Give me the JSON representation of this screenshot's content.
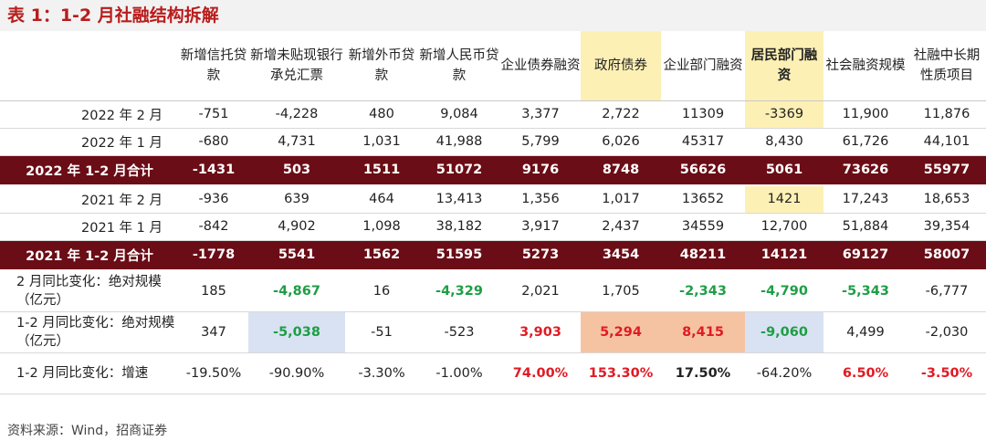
{
  "title": "表 1：1-2 月社融结构拆解",
  "headers": [
    "新增信托贷款",
    "新增未贴现银行承兑汇票",
    "新增外币贷款",
    "新增人民币贷款",
    "企业债券融资",
    "政府债券",
    "企业部门融资",
    "居民部门融资",
    "社会融资规模",
    "社融中长期性质项目"
  ],
  "rows": [
    {
      "label": "2022 年 2 月",
      "values": [
        "-751",
        "-4,228",
        "480",
        "9,084",
        "3,377",
        "2,722",
        "11309",
        "-3369",
        "11,900",
        "11,876"
      ]
    },
    {
      "label": "2022 年 1 月",
      "values": [
        "-680",
        "4,731",
        "1,031",
        "41,988",
        "5,799",
        "6,026",
        "45317",
        "8,430",
        "61,726",
        "44,101"
      ]
    },
    {
      "label": "2022 年 1-2 月合计",
      "values": [
        "-1431",
        "503",
        "1511",
        "51072",
        "9176",
        "8748",
        "56626",
        "5061",
        "73626",
        "55977"
      ]
    },
    {
      "label": "2021 年 2 月",
      "values": [
        "-936",
        "639",
        "464",
        "13,413",
        "1,356",
        "1,017",
        "13652",
        "1421",
        "17,243",
        "18,653"
      ]
    },
    {
      "label": "2021 年 1 月",
      "values": [
        "-842",
        "4,902",
        "1,098",
        "38,182",
        "3,917",
        "2,437",
        "34559",
        "12,700",
        "51,884",
        "39,354"
      ]
    },
    {
      "label": "2021 年 1-2 月合计",
      "values": [
        "-1778",
        "5541",
        "1562",
        "51595",
        "5273",
        "3454",
        "48211",
        "14121",
        "69127",
        "58007"
      ]
    },
    {
      "label": "2 月同比变化：绝对规模（亿元）",
      "values": [
        "185",
        "-4,867",
        "16",
        "-4,329",
        "2,021",
        "1,705",
        "-2,343",
        "-4,790",
        "-5,343",
        "-6,777"
      ]
    },
    {
      "label": "1-2 月同比变化：绝对规模（亿元）",
      "values": [
        "347",
        "-5,038",
        "-51",
        "-523",
        "3,903",
        "5,294",
        "8,415",
        "-9,060",
        "4,499",
        "-2,030"
      ]
    },
    {
      "label": "1-2 月同比变化：增速",
      "values": [
        "-19.50%",
        "-90.90%",
        "-3.30%",
        "-1.00%",
        "74.00%",
        "153.30%",
        "17.50%",
        "-64.20%",
        "6.50%",
        "-3.50%"
      ]
    }
  ],
  "source": "资料来源：Wind，招商证券",
  "colors": {
    "title_red": "#b91c1c",
    "summary_row": "#6b0d16",
    "highlight_yellow": "#fdf0b5",
    "highlight_blue": "#d9e2f2",
    "highlight_orange": "#f6c3a2",
    "positive_green": "#1e9e45",
    "negative_red": "#e01b24"
  }
}
